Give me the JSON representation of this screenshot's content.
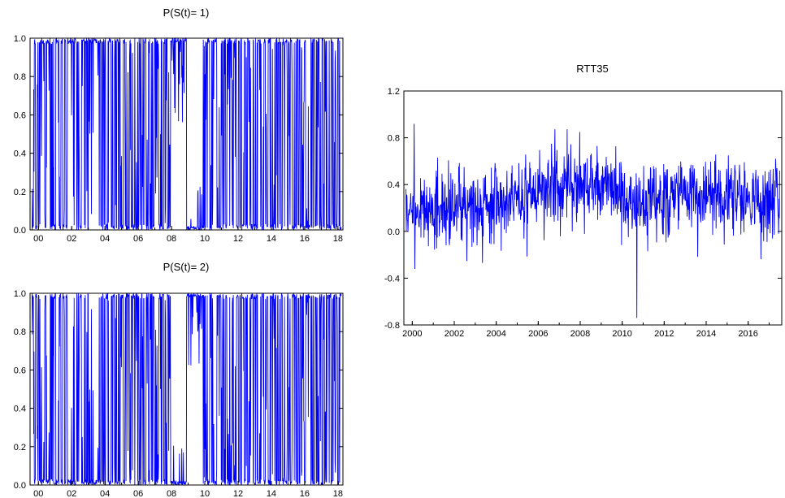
{
  "colors": {
    "series": "#0000ff",
    "axis": "#000000",
    "background": "#ffffff"
  },
  "chart_data": [
    {
      "type": "line",
      "title": "P(S(t)= 1)",
      "xlabel": "",
      "ylabel": "",
      "xlim": [
        1999.5,
        2018.3
      ],
      "ylim": [
        0,
        1
      ],
      "x_ticks": [
        "00",
        "02",
        "04",
        "06",
        "08",
        "10",
        "12",
        "14",
        "16",
        "18"
      ],
      "x_tick_years": [
        2000,
        2002,
        2004,
        2006,
        2008,
        2010,
        2012,
        2014,
        2016,
        2018
      ],
      "y_ticks": [
        "0.0",
        "0.2",
        "0.4",
        "0.6",
        "0.8",
        "1.0"
      ],
      "y_tick_values": [
        0,
        0.2,
        0.4,
        0.6,
        0.8,
        1.0
      ],
      "grid": false,
      "series": [
        {
          "style": "dense-switching",
          "low_segments": [
            [
              2008.9,
              2009.8
            ]
          ],
          "high_segments": [
            [
              2008.0,
              2008.9
            ]
          ],
          "x_start": 1999.6,
          "x_end": 2018.2,
          "samples": 950,
          "seed": 11
        }
      ]
    },
    {
      "type": "line",
      "title": "P(S(t)= 2)",
      "xlabel": "",
      "ylabel": "",
      "xlim": [
        1999.5,
        2018.3
      ],
      "ylim": [
        0,
        1
      ],
      "x_ticks": [
        "00",
        "02",
        "04",
        "06",
        "08",
        "10",
        "12",
        "14",
        "16",
        "18"
      ],
      "x_tick_years": [
        2000,
        2002,
        2004,
        2006,
        2008,
        2010,
        2012,
        2014,
        2016,
        2018
      ],
      "y_ticks": [
        "0.0",
        "0.2",
        "0.4",
        "0.6",
        "0.8",
        "1.0"
      ],
      "y_tick_values": [
        0,
        0.2,
        0.4,
        0.6,
        0.8,
        1.0
      ],
      "grid": false,
      "series": [
        {
          "style": "dense-switching",
          "low_segments": [
            [
              2008.0,
              2008.9
            ]
          ],
          "high_segments": [
            [
              2008.9,
              2009.8
            ]
          ],
          "x_start": 1999.6,
          "x_end": 2018.2,
          "samples": 950,
          "seed": 11,
          "complement_of": 0
        }
      ]
    },
    {
      "type": "line",
      "title": "RTT35",
      "xlabel": "",
      "ylabel": "",
      "xlim": [
        1999.6,
        2017.6
      ],
      "ylim": [
        -0.8,
        1.2
      ],
      "x_ticks": [
        "2000",
        "2002",
        "2004",
        "2006",
        "2008",
        "2010",
        "2012",
        "2014",
        "2016"
      ],
      "x_tick_years": [
        2000,
        2002,
        2004,
        2006,
        2008,
        2010,
        2012,
        2014,
        2016
      ],
      "y_ticks": [
        "-0.8",
        "-0.4",
        "0.0",
        "0.4",
        "0.8",
        "1.2"
      ],
      "y_tick_values": [
        -0.8,
        -0.4,
        0.0,
        0.4,
        0.8,
        1.2
      ],
      "grid": false,
      "series": [
        {
          "style": "noisy-returns",
          "x_start": 1999.7,
          "x_end": 2017.5,
          "samples": 1100,
          "seed": 7,
          "mean_by_year": [
            [
              2000,
              0.18
            ],
            [
              2004,
              0.24
            ],
            [
              2007,
              0.38
            ],
            [
              2008,
              0.42
            ],
            [
              2009.6,
              0.34
            ],
            [
              2010.5,
              0.22
            ],
            [
              2013,
              0.3
            ],
            [
              2017.5,
              0.26
            ]
          ],
          "spread": 0.22,
          "max": 0.92,
          "min": -0.74,
          "min_at": 2010.7
        }
      ]
    }
  ]
}
